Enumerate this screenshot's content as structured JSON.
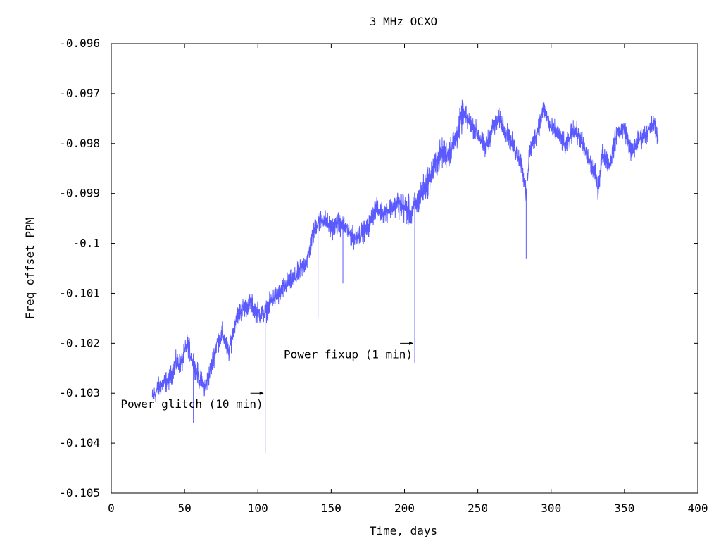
{
  "chart_data": {
    "type": "line",
    "title": "3 MHz OCXO",
    "xlabel": "Time, days",
    "ylabel": "Freq offset PPM",
    "xlim": [
      0,
      400
    ],
    "ylim": [
      -0.105,
      -0.096
    ],
    "xticks": [
      0,
      50,
      100,
      150,
      200,
      250,
      300,
      350,
      400
    ],
    "xtick_labels": [
      "0",
      "50",
      "100",
      "150",
      "200",
      "250",
      "300",
      "350",
      "400"
    ],
    "yticks": [
      -0.105,
      -0.104,
      -0.103,
      -0.102,
      -0.101,
      -0.1,
      -0.099,
      -0.098,
      -0.097,
      -0.096
    ],
    "ytick_labels": [
      "-0.105",
      "-0.104",
      "-0.103",
      "-0.102",
      "-0.101",
      "-0.1",
      "-0.099",
      "-0.098",
      "-0.097",
      "-0.096"
    ],
    "grid": false,
    "colors": {
      "series": "#5a5aff",
      "axes": "#000000"
    },
    "series": [
      {
        "x": [
          28,
          32,
          36,
          40,
          44,
          48,
          52,
          56,
          60,
          64,
          68,
          72,
          76,
          80,
          85,
          90,
          95,
          100,
          105,
          110,
          115,
          120,
          125,
          130,
          134,
          137,
          140,
          145,
          150,
          155,
          160,
          165,
          170,
          175,
          180,
          185,
          190,
          195,
          200,
          205,
          210,
          215,
          220,
          225,
          230,
          235,
          240,
          245,
          250,
          255,
          260,
          265,
          270,
          275,
          280,
          283,
          285,
          290,
          295,
          300,
          305,
          310,
          315,
          320,
          325,
          330,
          332,
          335,
          340,
          345,
          350,
          355,
          360,
          365,
          370,
          373
        ],
        "y": [
          -0.1031,
          -0.1029,
          -0.1028,
          -0.1027,
          -0.1024,
          -0.1024,
          -0.102,
          -0.1024,
          -0.1027,
          -0.1029,
          -0.1025,
          -0.102,
          -0.1018,
          -0.1022,
          -0.1015,
          -0.1013,
          -0.1012,
          -0.1014,
          -0.1014,
          -0.1011,
          -0.101,
          -0.1008,
          -0.1007,
          -0.1005,
          -0.1003,
          -0.0999,
          -0.0996,
          -0.0995,
          -0.0997,
          -0.0996,
          -0.0997,
          -0.0999,
          -0.0998,
          -0.0997,
          -0.0993,
          -0.0994,
          -0.0993,
          -0.0992,
          -0.0993,
          -0.0994,
          -0.0991,
          -0.0988,
          -0.0985,
          -0.0982,
          -0.0982,
          -0.0979,
          -0.0974,
          -0.0976,
          -0.0978,
          -0.0981,
          -0.0977,
          -0.0975,
          -0.0978,
          -0.0981,
          -0.0984,
          -0.0991,
          -0.0982,
          -0.0978,
          -0.0973,
          -0.0977,
          -0.0978,
          -0.0981,
          -0.0977,
          -0.0979,
          -0.0983,
          -0.0986,
          -0.0989,
          -0.0982,
          -0.0984,
          -0.0978,
          -0.0977,
          -0.0982,
          -0.0979,
          -0.0978,
          -0.0976,
          -0.0979
        ]
      }
    ],
    "spikes": [
      {
        "x": 56,
        "y": -0.1036
      },
      {
        "x": 105,
        "y": -0.1042
      },
      {
        "x": 141,
        "y": -0.1015
      },
      {
        "x": 158,
        "y": -0.1008
      },
      {
        "x": 207,
        "y": -0.1024
      },
      {
        "x": 283,
        "y": -0.1003
      }
    ],
    "annotations": [
      {
        "text": "Power glitch (10 min)",
        "x": 105,
        "y": -0.103
      },
      {
        "text": "Power fixup (1 min)",
        "x": 207,
        "y": -0.102
      }
    ]
  }
}
